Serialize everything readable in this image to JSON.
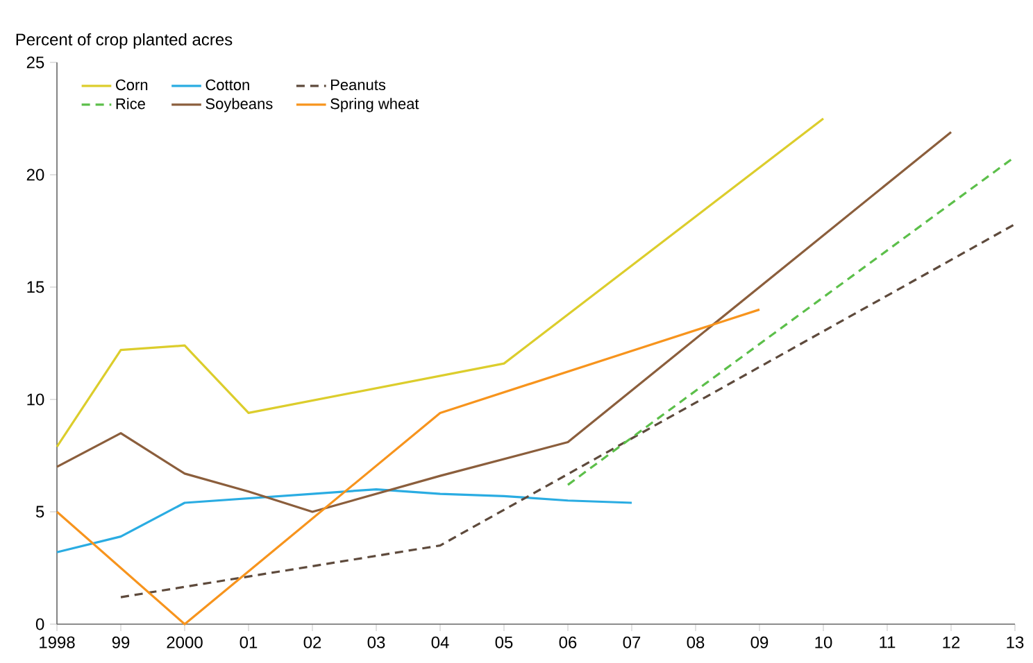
{
  "chart_data": {
    "type": "line",
    "ylabel": "Percent of crop planted acres",
    "xlim": [
      1998,
      2013
    ],
    "ylim": [
      0,
      25
    ],
    "xticks": [
      1998,
      {
        "value": 1999,
        "label": "99"
      },
      2000,
      {
        "value": 2001,
        "label": "01"
      },
      {
        "value": 2002,
        "label": "02"
      },
      {
        "value": 2003,
        "label": "03"
      },
      {
        "value": 2004,
        "label": "04"
      },
      {
        "value": 2005,
        "label": "05"
      },
      {
        "value": 2006,
        "label": "06"
      },
      {
        "value": 2007,
        "label": "07"
      },
      {
        "value": 2008,
        "label": "08"
      },
      {
        "value": 2009,
        "label": "09"
      },
      {
        "value": 2010,
        "label": "10"
      },
      {
        "value": 2011,
        "label": "11"
      },
      {
        "value": 2012,
        "label": "12"
      },
      {
        "value": 2013,
        "label": "13"
      }
    ],
    "yticks": [
      0,
      5,
      10,
      15,
      20,
      25
    ],
    "grid": false,
    "legend": "top left",
    "marker": "none",
    "series": [
      {
        "name": "Corn",
        "color": "#dccd2c",
        "line_style": "solid",
        "x": [
          1998,
          1999,
          2000,
          2001,
          2005,
          2010
        ],
        "values": [
          7.9,
          12.2,
          12.4,
          9.4,
          11.6,
          22.5
        ]
      },
      {
        "name": "Cotton",
        "color": "#2aace2",
        "line_style": "solid",
        "x": [
          1998,
          1999,
          2000,
          2001,
          2002,
          2003,
          2004,
          2005,
          2006,
          2007
        ],
        "values": [
          3.2,
          3.9,
          5.4,
          5.6,
          5.8,
          6.0,
          5.8,
          5.7,
          5.5,
          5.4
        ]
      },
      {
        "name": "Peanuts",
        "color": "#5e4a3c",
        "line_style": "dashed",
        "x": [
          1999,
          2004,
          2013
        ],
        "values": [
          1.2,
          3.5,
          17.8
        ]
      },
      {
        "name": "Rice",
        "color": "#5cbf4a",
        "line_style": "dashed",
        "x": [
          2006,
          2007,
          2013
        ],
        "values": [
          6.2,
          8.3,
          20.8
        ]
      },
      {
        "name": "Soybeans",
        "color": "#8b5e3c",
        "line_style": "solid",
        "x": [
          1998,
          1999,
          2000,
          2001,
          2002,
          2004,
          2006,
          2012
        ],
        "values": [
          7.0,
          8.5,
          6.7,
          5.9,
          5.0,
          6.6,
          8.1,
          21.9
        ]
      },
      {
        "name": "Spring wheat",
        "color": "#f7941d",
        "line_style": "solid",
        "x": [
          1998,
          2000,
          2004,
          2009
        ],
        "values": [
          5.0,
          0.0,
          9.4,
          14.0
        ]
      }
    ]
  }
}
